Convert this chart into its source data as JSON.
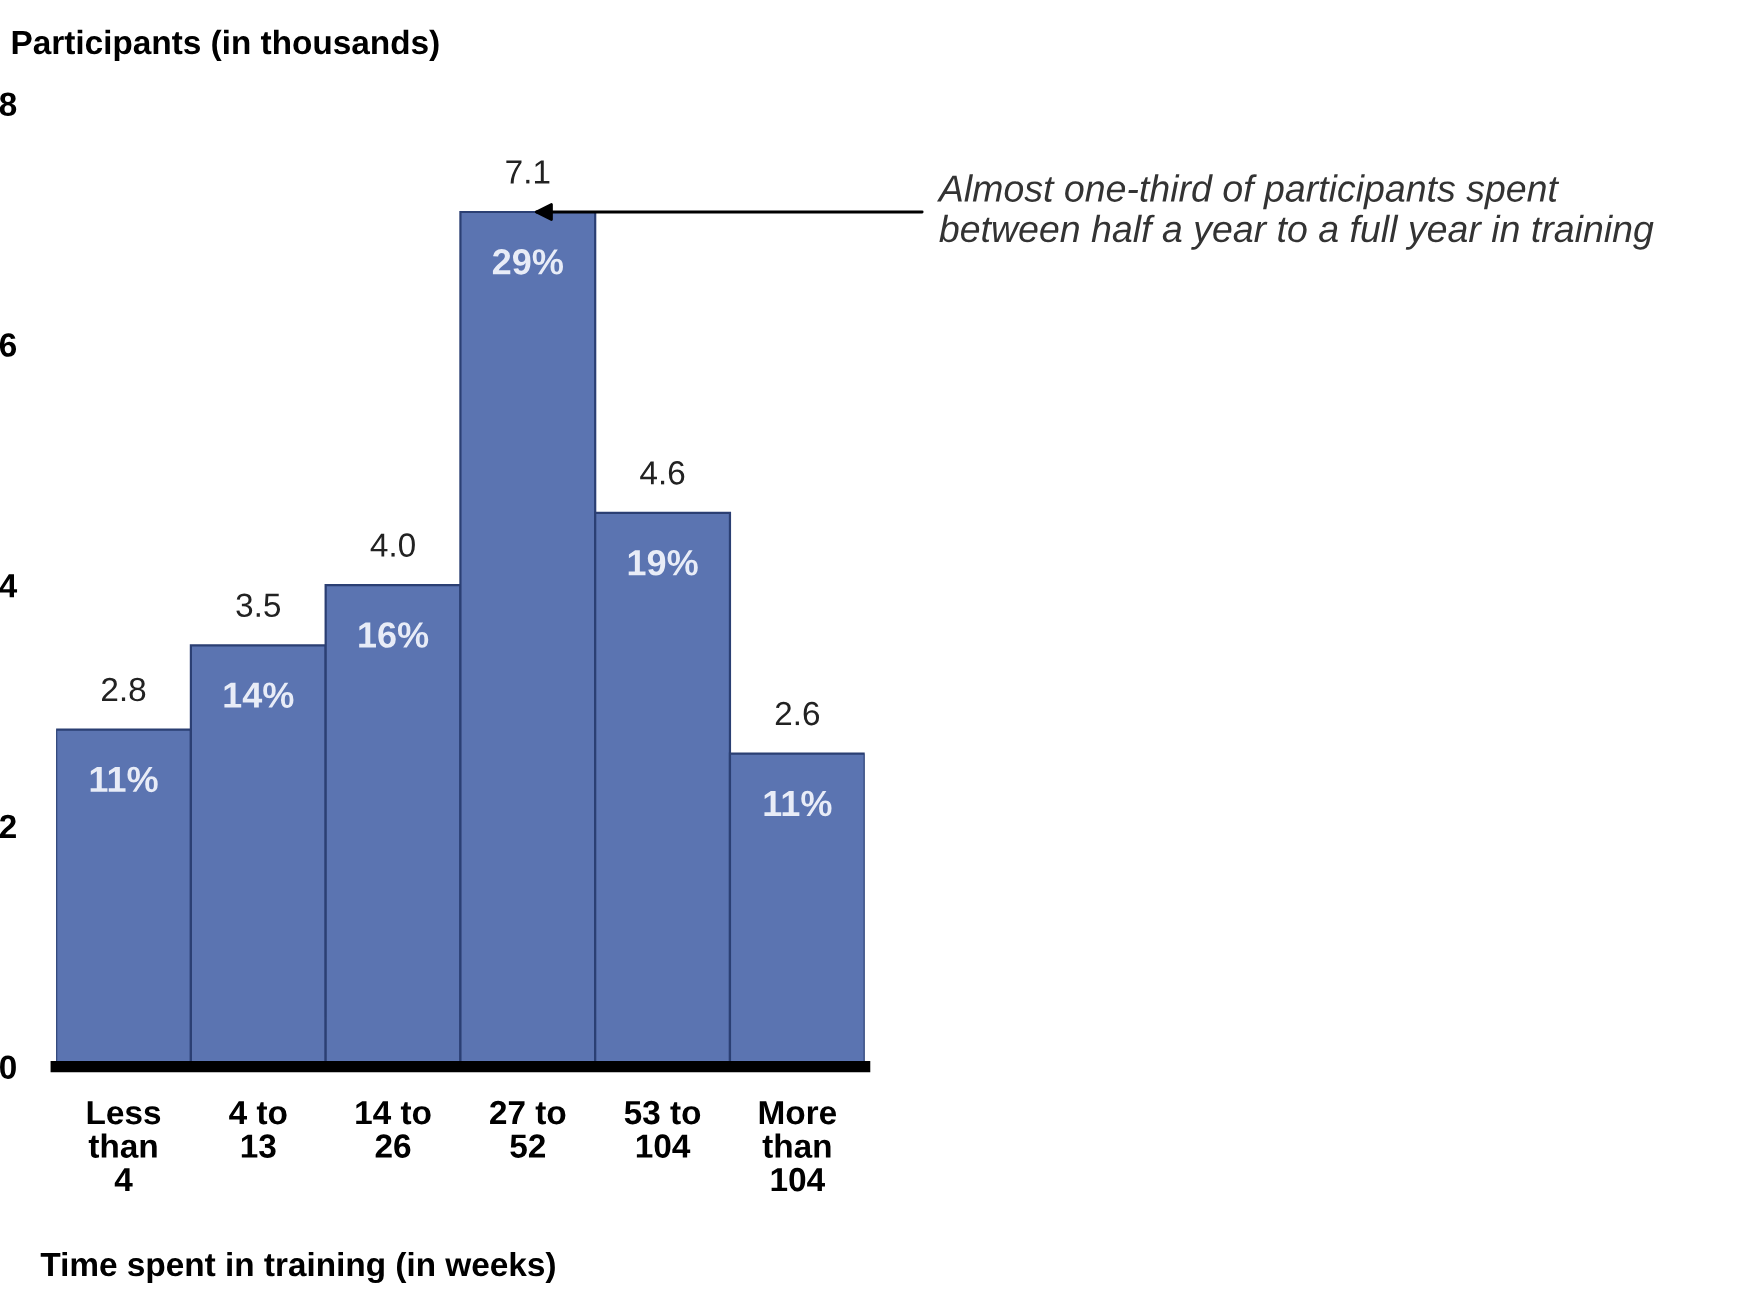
{
  "chart_data": {
    "type": "bar",
    "ylabel": "Participants (in thousands)",
    "xlabel": "Time spent in training (in weeks)",
    "categories": [
      "Less\nthan\n4",
      "4 to\n13",
      "14 to\n26",
      "27 to\n52",
      "53 to\n104",
      "More\nthan\n104"
    ],
    "values": [
      2.8,
      3.5,
      4.0,
      7.1,
      4.6,
      2.6
    ],
    "value_labels": [
      "2.8",
      "3.5",
      "4.0",
      "7.1",
      "4.6",
      "2.6"
    ],
    "color": "#5b74b1",
    "ylim": [
      0,
      8
    ],
    "yticks": [
      0,
      2,
      4,
      6,
      8
    ],
    "grid": false,
    "legend": false,
    "annotations": [
      {
        "text": "11%",
        "x": "Less\nthan\n4",
        "y": 2.8
      },
      {
        "text": "14%",
        "x": "4 to\n13",
        "y": 3.5
      },
      {
        "text": "16%",
        "x": "14 to\n26",
        "y": 4.0
      },
      {
        "text": "29%",
        "x": "27 to\n52",
        "y": 7.1
      },
      {
        "text": "19%",
        "x": "53 to\n104",
        "y": 4.6
      },
      {
        "text": "11%",
        "x": "More\nthan\n104",
        "y": 2.6
      },
      {
        "text": "Almost one-third of participants spent\nbetween half a year to a full year in training",
        "x": "27 to\n52",
        "y": 7.1
      }
    ]
  }
}
